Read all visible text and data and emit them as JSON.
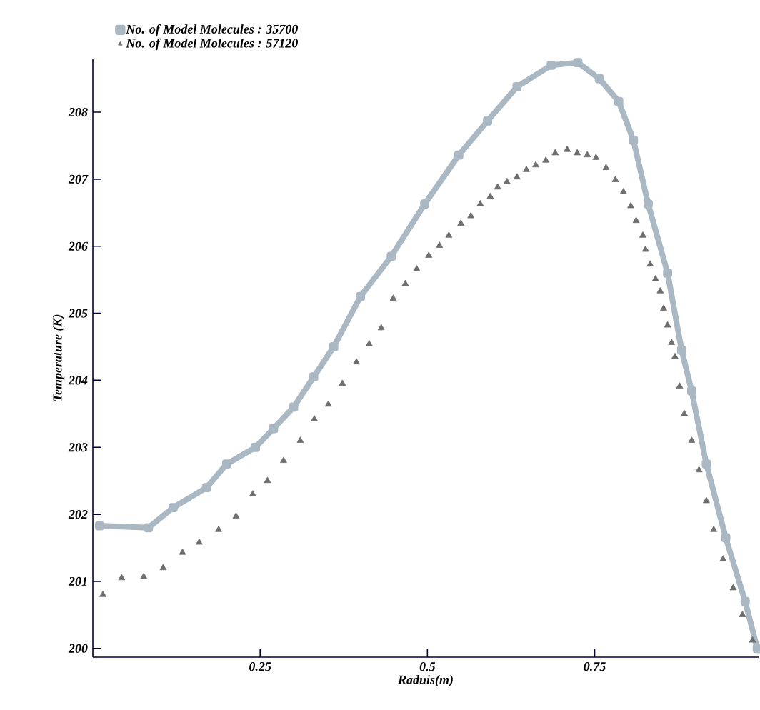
{
  "chart_data": {
    "type": "scatter",
    "xlabel": "Raduis(m)",
    "ylabel": "Temperature (K)",
    "xlim": [
      0,
      0.995
    ],
    "ylim": [
      199.87,
      208.8
    ],
    "xticks": [
      0.25,
      0.5,
      0.75
    ],
    "yticks": [
      200,
      201,
      202,
      203,
      204,
      205,
      206,
      207,
      208
    ],
    "legend": "top left",
    "series": [
      {
        "name": "No. of Model Molecules : 35700",
        "type": "line",
        "marker": "square",
        "color": "#aab8c4",
        "x": [
          0.01,
          0.083,
          0.12,
          0.17,
          0.2,
          0.243,
          0.27,
          0.3,
          0.33,
          0.36,
          0.4,
          0.446,
          0.496,
          0.547,
          0.59,
          0.634,
          0.685,
          0.725,
          0.757,
          0.786,
          0.808,
          0.83,
          0.859,
          0.88,
          0.895,
          0.917,
          0.946,
          0.975,
          0.993
        ],
        "values": [
          201.83,
          201.8,
          202.1,
          202.4,
          202.75,
          203.0,
          203.28,
          203.6,
          204.05,
          204.5,
          205.25,
          205.85,
          206.63,
          207.36,
          207.87,
          208.38,
          208.7,
          208.74,
          208.5,
          208.16,
          207.58,
          206.63,
          205.6,
          204.45,
          203.84,
          202.75,
          201.65,
          200.7,
          200.0
        ]
      },
      {
        "name": "No. of Model Molecules : 57120",
        "marker": "triangle",
        "color": "#6e6e6e",
        "x": [
          0.015,
          0.043,
          0.076,
          0.105,
          0.134,
          0.159,
          0.188,
          0.214,
          0.239,
          0.261,
          0.285,
          0.31,
          0.331,
          0.352,
          0.373,
          0.394,
          0.413,
          0.431,
          0.449,
          0.467,
          0.484,
          0.502,
          0.518,
          0.532,
          0.55,
          0.565,
          0.579,
          0.594,
          0.605,
          0.619,
          0.634,
          0.648,
          0.662,
          0.677,
          0.691,
          0.709,
          0.724,
          0.739,
          0.752,
          0.767,
          0.781,
          0.793,
          0.804,
          0.812,
          0.822,
          0.826,
          0.833,
          0.841,
          0.848,
          0.853,
          0.859,
          0.865,
          0.87,
          0.877,
          0.884,
          0.895,
          0.906,
          0.917,
          0.928,
          0.942,
          0.957,
          0.971,
          0.986
        ],
        "values": [
          200.8,
          201.05,
          201.07,
          201.2,
          201.43,
          201.58,
          201.77,
          201.97,
          202.3,
          202.5,
          202.8,
          203.1,
          203.42,
          203.64,
          203.95,
          204.27,
          204.54,
          204.78,
          205.22,
          205.44,
          205.66,
          205.86,
          206.01,
          206.16,
          206.34,
          206.45,
          206.63,
          206.74,
          206.88,
          206.96,
          207.03,
          207.14,
          207.21,
          207.28,
          207.39,
          207.44,
          207.39,
          207.36,
          207.32,
          207.17,
          206.99,
          206.81,
          206.6,
          206.38,
          206.16,
          205.95,
          205.73,
          205.51,
          205.33,
          205.07,
          204.82,
          204.56,
          204.35,
          203.91,
          203.5,
          203.1,
          202.66,
          202.2,
          201.77,
          201.33,
          200.9,
          200.5,
          200.12
        ]
      }
    ]
  }
}
